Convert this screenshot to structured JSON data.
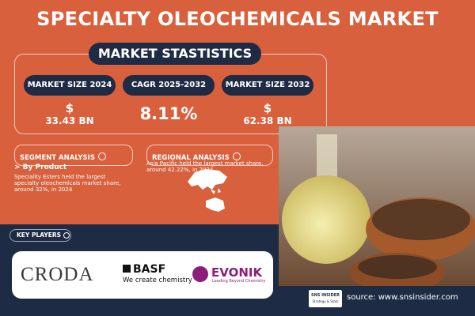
{
  "header": {
    "title": "SPECIALTY OLEOCHEMICALS MARKET"
  },
  "market_statistics": {
    "title": "MARKET STASTISTICS",
    "cards": [
      {
        "label": "MARKET SIZE 2024",
        "currency": "$",
        "value": "33.43 BN"
      },
      {
        "label": "CAGR 2025-2032",
        "value": "8.11%"
      },
      {
        "label": "MARKET SIZE 2032",
        "currency": "$",
        "value": "62.38 BN"
      }
    ]
  },
  "segment_analysis": {
    "title": "SEGMENT ANALYSIS",
    "subtitle": "> By Product",
    "text": "Speciality Esters held the largest specialty oleochemicals market share, around 32%, in 2024"
  },
  "regional_analysis": {
    "title": "REGIONAL ANALYSIS",
    "text": "Asia Pacific held the largest market share, around 42.22%, in 2024"
  },
  "key_players": {
    "title": "KEY PLAYERS",
    "companies": [
      {
        "name": "CRODA"
      },
      {
        "name": "BASF",
        "tagline": "We create chemistry"
      },
      {
        "name": "EVONIK",
        "tagline": "Leading Beyond Chemistry"
      }
    ]
  },
  "footer": {
    "brand": "SNS INSIDER",
    "brand_tagline": "Strategy & Stats",
    "source": "source: www.snsinsider.com"
  }
}
